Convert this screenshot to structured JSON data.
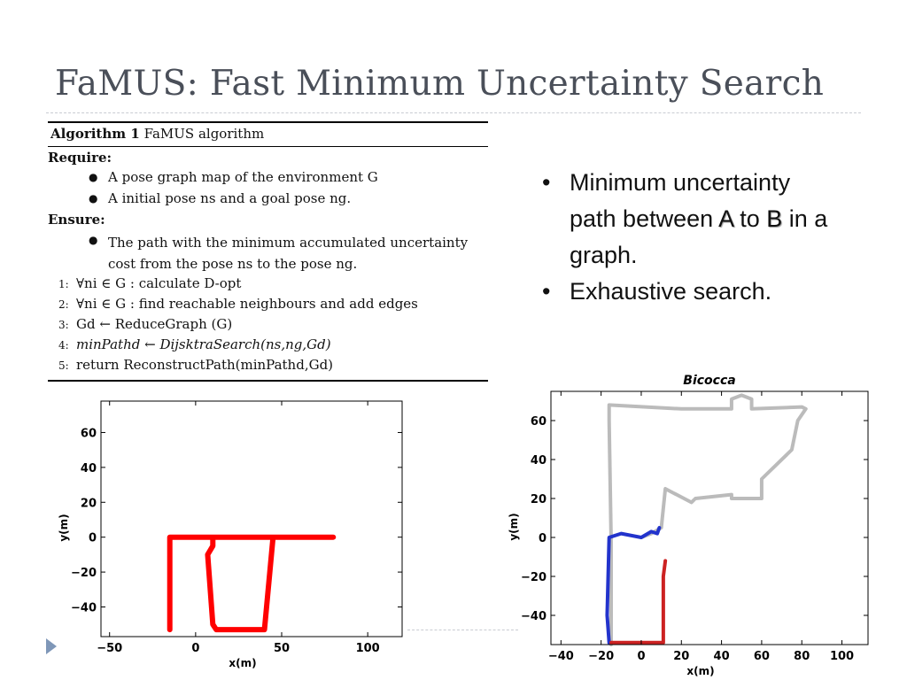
{
  "slide": {
    "title": "FaMUS: Fast Minimum Uncertainty Search"
  },
  "algorithm": {
    "label_bold": "Algorithm 1",
    "label": "FaMUS algorithm",
    "require_label": "Require:",
    "require_items": [
      "A pose graph map of the environment G",
      "A initial pose ns and a goal pose ng."
    ],
    "ensure_label": "Ensure:",
    "ensure_items": [
      "The path with the minimum accumulated uncertainty cost from the pose ns to the pose ng."
    ],
    "steps": [
      {
        "num": "1:",
        "text": "∀ni ∈ G : calculate D-opt"
      },
      {
        "num": "2:",
        "text": "∀ni ∈ G : find reachable neighbours and add edges"
      },
      {
        "num": "3:",
        "text": "Gd ← ReduceGraph (G)"
      },
      {
        "num": "4:",
        "text": "minPathd ← DijsktraSearch(ns,ng,Gd)"
      },
      {
        "num": "5:",
        "text": "return ReconstructPath(minPathd,Gd)"
      }
    ]
  },
  "bullets": {
    "item1_part1": "Minimum uncertainty path between ",
    "item1_a": "A",
    "item1_to": " to ",
    "item1_b": "B",
    "item1_part2": " in a graph.",
    "item2": "Exhaustive search.",
    "bullet_glyph": "•"
  },
  "chart_data": [
    {
      "type": "line",
      "title": "",
      "xlabel": "x(m)",
      "ylabel": "y(m)",
      "xlim": [
        -55,
        120
      ],
      "ylim": [
        -57,
        78
      ],
      "xticks": [
        -50,
        0,
        50,
        100
      ],
      "yticks": [
        -40,
        -20,
        0,
        20,
        40,
        60
      ],
      "xtick_labels": [
        "−50",
        "0",
        "50",
        "100"
      ],
      "ytick_labels": [
        "−40",
        "−20",
        "0",
        "20",
        "40",
        "60"
      ],
      "grid": false,
      "series": [
        {
          "color": "#ff0000",
          "x": [
            -15,
            -15,
            10,
            10,
            7,
            10,
            12,
            40,
            45,
            45,
            50,
            50,
            80,
            80,
            78,
            75,
            70,
            70,
            58,
            58,
            45,
            45,
            12,
            12,
            5,
            12,
            10,
            10,
            -15,
            -15,
            -5,
            0,
            -15,
            -15
          ],
          "y": [
            -53,
            0,
            0,
            -5,
            -10,
            -50,
            -53,
            -53,
            0,
            0,
            0,
            0,
            0,
            0,
            0,
            0,
            0,
            0,
            0,
            0,
            0,
            0,
            0,
            0,
            0,
            0,
            0,
            0,
            0,
            0,
            0,
            0,
            0,
            0
          ]
        }
      ]
    },
    {
      "type": "line",
      "title": "Bicocca",
      "xlabel": "x(m)",
      "ylabel": "y(m)",
      "xlim": [
        -45,
        113
      ],
      "ylim": [
        -55,
        75
      ],
      "xticks": [
        -40,
        -20,
        0,
        20,
        40,
        60,
        80,
        100
      ],
      "yticks": [
        -40,
        -20,
        0,
        20,
        40,
        60
      ],
      "xtick_labels": [
        "−40",
        "−20",
        "0",
        "20",
        "40",
        "60",
        "80",
        "100"
      ],
      "ytick_labels": [
        "−40",
        "−20",
        "0",
        "20",
        "40",
        "60"
      ],
      "grid": false,
      "legend": "none",
      "series": [
        {
          "color": "#bbbbbb",
          "x": [
            -15,
            -15,
            -16,
            -16,
            20,
            45,
            45,
            50,
            55,
            55,
            80,
            82,
            78,
            75,
            60,
            60,
            45,
            45,
            27,
            25,
            12,
            10,
            5,
            0
          ],
          "y": [
            -55,
            -2,
            60,
            68,
            66,
            66,
            71,
            73,
            71,
            66,
            67,
            66,
            60,
            45,
            30,
            20,
            20,
            22,
            20,
            18,
            25,
            5,
            2,
            0
          ]
        },
        {
          "color": "#2233cc",
          "x": [
            -16,
            -17,
            -16,
            -10,
            0,
            5,
            8,
            9
          ],
          "y": [
            -54,
            -40,
            0,
            2,
            0,
            3,
            2,
            5
          ]
        },
        {
          "color": "#cc2222",
          "x": [
            -15,
            11,
            11,
            12
          ],
          "y": [
            -54,
            -54,
            -20,
            -12
          ]
        }
      ]
    }
  ]
}
